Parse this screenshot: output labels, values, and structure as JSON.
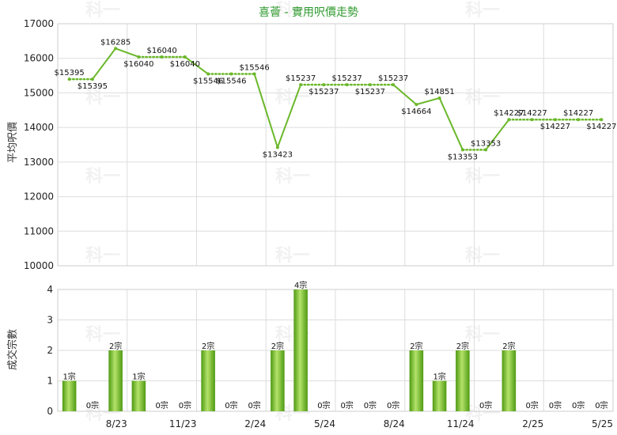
{
  "title": "喜薈 - 實用呎價走勢",
  "colors": {
    "line": "#6ab82a",
    "bar_light": "#b4e26a",
    "bar_dark": "#4e9a12",
    "grid": "#dddddd",
    "title": "#2e9a2e"
  },
  "watermark": "科一",
  "chart_data": [
    {
      "type": "line",
      "title": "喜薈 - 實用呎價走勢",
      "ylabel": "平均呎價",
      "ylim": [
        10000,
        17000
      ],
      "yticks": [
        "17000",
        "16000",
        "15000",
        "14000",
        "13000",
        "12000",
        "11000",
        "10000"
      ],
      "values": [
        15395,
        15395,
        16285,
        16040,
        16040,
        16040,
        15546,
        15546,
        15546,
        13423,
        15237,
        15237,
        15237,
        15237,
        15237,
        14664,
        14851,
        13353,
        13353,
        14227,
        14227,
        14227,
        14227,
        14227
      ],
      "labels": [
        "$15395",
        "$15395",
        "$16285",
        "$16040",
        "$16040",
        "$16040",
        "$15546",
        "$15546",
        "$15546",
        "$13423",
        "$15237",
        "$15237",
        "$15237",
        "$15237",
        "$15237",
        "$14664",
        "$14851",
        "$13353",
        "$13353",
        "$14227",
        "$14227",
        "$14227",
        "$14227",
        "$14227"
      ],
      "segments": [
        "dotted",
        "solid",
        "solid",
        "dotted",
        "dotted",
        "solid",
        "dotted",
        "dotted",
        "solid",
        "solid",
        "dotted",
        "dotted",
        "dotted",
        "dotted",
        "solid",
        "solid",
        "solid",
        "dotted",
        "solid",
        "dotted",
        "dotted",
        "dotted",
        "dotted"
      ]
    },
    {
      "type": "bar",
      "ylabel": "成交宗數",
      "ylim": [
        0,
        4
      ],
      "yticks": [
        "4",
        "3",
        "2",
        "1",
        "0"
      ],
      "values": [
        1,
        0,
        2,
        1,
        0,
        0,
        2,
        0,
        0,
        2,
        4,
        0,
        0,
        0,
        0,
        2,
        1,
        2,
        0,
        2,
        0,
        0,
        0,
        0
      ],
      "labels": [
        "1宗",
        "0宗",
        "2宗",
        "1宗",
        "0宗",
        "0宗",
        "2宗",
        "0宗",
        "0宗",
        "2宗",
        "4宗",
        "0宗",
        "0宗",
        "0宗",
        "0宗",
        "2宗",
        "1宗",
        "2宗",
        "0宗",
        "2宗",
        "0宗",
        "0宗",
        "0宗",
        "0宗"
      ],
      "x_tick_labels": [
        "8/23",
        "11/23",
        "2/24",
        "5/24",
        "8/24",
        "11/24",
        "2/25",
        "5/25"
      ]
    }
  ]
}
